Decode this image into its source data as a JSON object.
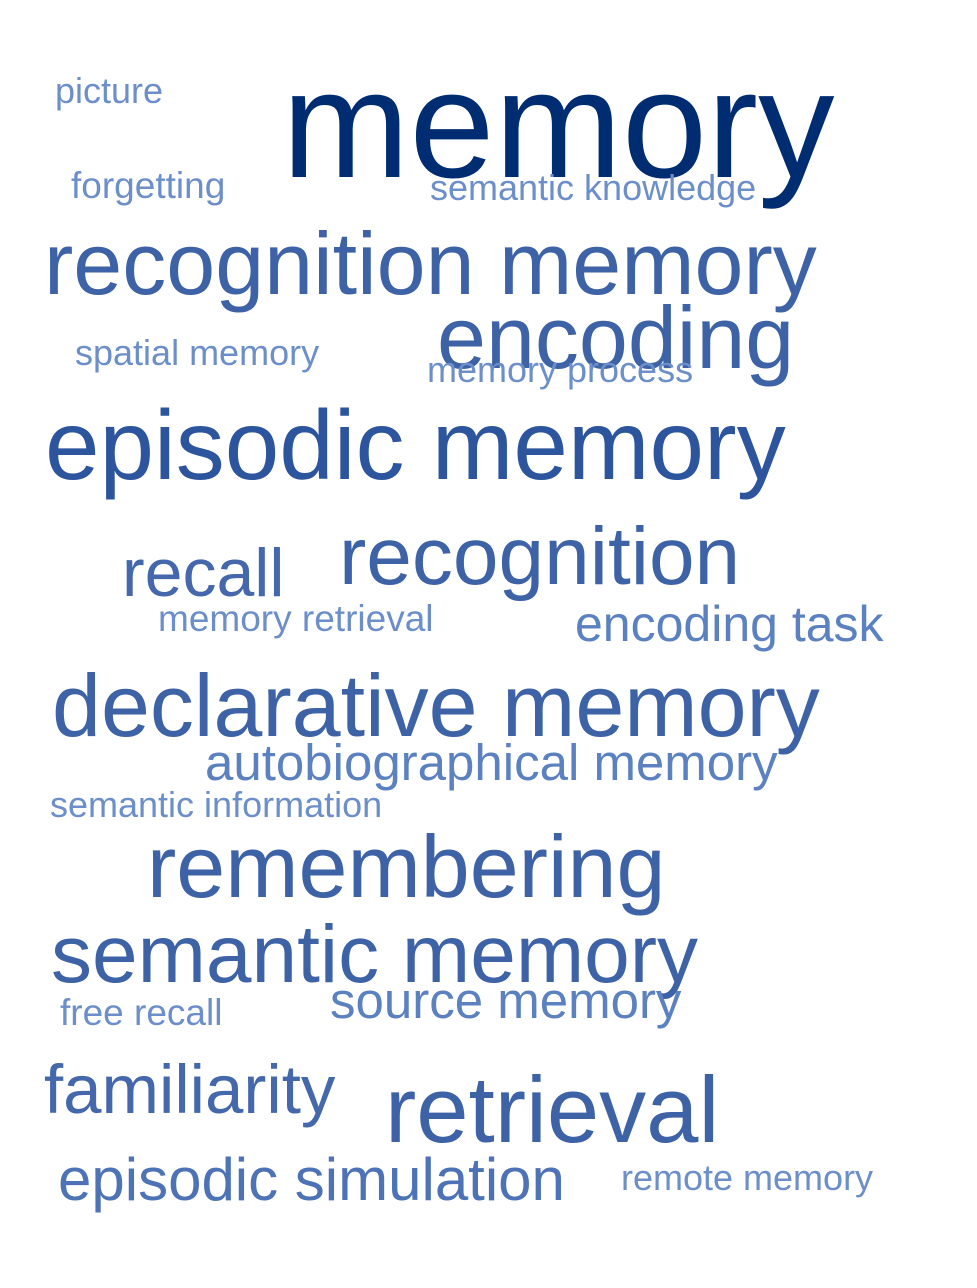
{
  "word_cloud": {
    "words": [
      {
        "id": "memory",
        "text": "memory",
        "color": "#002d72"
      },
      {
        "id": "picture",
        "text": "picture",
        "color": "#6c8fca"
      },
      {
        "id": "forgetting",
        "text": "forgetting",
        "color": "#6c8fca"
      },
      {
        "id": "semantic-knowledge",
        "text": "semantic knowledge",
        "color": "#6c8fca"
      },
      {
        "id": "recognition-memory",
        "text": "recognition memory",
        "color": "#3d62a6"
      },
      {
        "id": "encoding",
        "text": "encoding",
        "color": "#3d62a6"
      },
      {
        "id": "spatial-memory",
        "text": "spatial memory",
        "color": "#6c8fca"
      },
      {
        "id": "memory-process",
        "text": "memory process",
        "color": "#6c8fca"
      },
      {
        "id": "episodic-memory",
        "text": "episodic memory",
        "color": "#2c559e"
      },
      {
        "id": "recall",
        "text": "recall",
        "color": "#4468ab"
      },
      {
        "id": "recognition",
        "text": "recognition",
        "color": "#3d62a6"
      },
      {
        "id": "memory-retrieval",
        "text": "memory retrieval",
        "color": "#6c8fca"
      },
      {
        "id": "encoding-task",
        "text": "encoding task",
        "color": "#5b81c0"
      },
      {
        "id": "declarative-memory",
        "text": "declarative memory",
        "color": "#3d62a6"
      },
      {
        "id": "autobiographical-memory",
        "text": "autobiographical memory",
        "color": "#5b81c0"
      },
      {
        "id": "semantic-information",
        "text": "semantic information",
        "color": "#6c8fca"
      },
      {
        "id": "remembering",
        "text": "remembering",
        "color": "#3d62a6"
      },
      {
        "id": "semantic-memory",
        "text": "semantic memory",
        "color": "#3d62a6"
      },
      {
        "id": "source-memory",
        "text": "source memory",
        "color": "#5b81c0"
      },
      {
        "id": "free-recall",
        "text": "free recall",
        "color": "#6c8fca"
      },
      {
        "id": "familiarity",
        "text": "familiarity",
        "color": "#4468ab"
      },
      {
        "id": "retrieval",
        "text": "retrieval",
        "color": "#3d62a6"
      },
      {
        "id": "episodic-simulation",
        "text": "episodic simulation",
        "color": "#4d73b6"
      },
      {
        "id": "remote-memory",
        "text": "remote memory",
        "color": "#6c8fca"
      }
    ]
  }
}
